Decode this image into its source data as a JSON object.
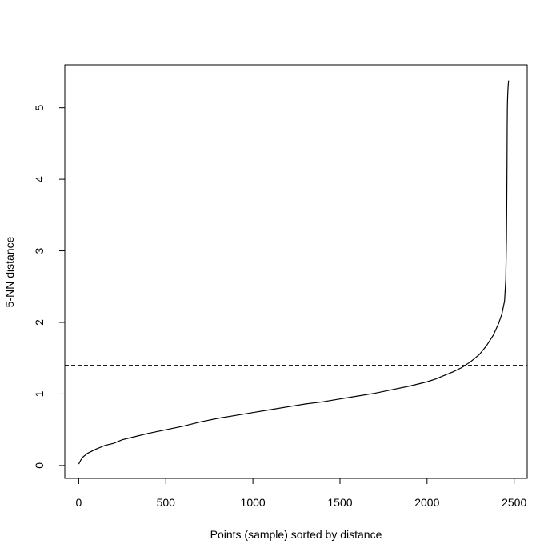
{
  "chart_data": {
    "type": "line",
    "title": "",
    "xlabel": "Points (sample) sorted by distance",
    "ylabel": "5-NN distance",
    "xlim": [
      -80,
      2575
    ],
    "ylim": [
      -0.18,
      5.6
    ],
    "x_ticks": [
      0,
      500,
      1000,
      1500,
      2000,
      2500
    ],
    "y_ticks": [
      0,
      1,
      2,
      3,
      4,
      5
    ],
    "x_tick_labels": [
      "0",
      "500",
      "1000",
      "1500",
      "2000",
      "2500"
    ],
    "y_tick_labels": [
      "0",
      "1",
      "2",
      "3",
      "4",
      "5"
    ],
    "grid": false,
    "legend": "none",
    "line_color": "#000000",
    "threshold_line": {
      "y": 1.4,
      "style": "dashed",
      "color": "#000000"
    },
    "series": [
      {
        "x": [
          0,
          10,
          25,
          50,
          100,
          150,
          200,
          250,
          300,
          400,
          500,
          600,
          700,
          800,
          900,
          1000,
          1100,
          1200,
          1300,
          1400,
          1500,
          1600,
          1700,
          1800,
          1900,
          2000,
          2050,
          2100,
          2150,
          2200,
          2250,
          2300,
          2340,
          2380,
          2410,
          2430,
          2445,
          2452,
          2456,
          2458,
          2459,
          2460,
          2461,
          2462,
          2463,
          2464,
          2465,
          2466,
          2467,
          2468
        ],
        "y": [
          0.02,
          0.07,
          0.12,
          0.17,
          0.23,
          0.28,
          0.31,
          0.36,
          0.39,
          0.45,
          0.5,
          0.55,
          0.61,
          0.66,
          0.7,
          0.74,
          0.78,
          0.82,
          0.86,
          0.89,
          0.93,
          0.97,
          1.01,
          1.06,
          1.11,
          1.17,
          1.21,
          1.26,
          1.31,
          1.37,
          1.45,
          1.55,
          1.67,
          1.82,
          1.98,
          2.12,
          2.3,
          2.6,
          3.2,
          3.8,
          4.18,
          4.7,
          5.0,
          5.1,
          5.18,
          5.24,
          5.28,
          5.32,
          5.35,
          5.38
        ]
      }
    ]
  }
}
